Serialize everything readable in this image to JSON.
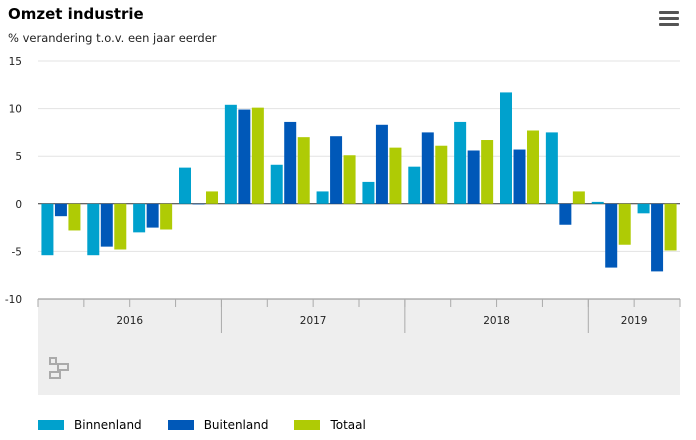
{
  "title": "Omzet industrie",
  "subtitle": "% verandering t.o.v. een jaar eerder",
  "menu_icon": "hamburger-menu-icon",
  "navigator_icon": "cbs-logo-icon",
  "legend": [
    {
      "name": "Binnenland",
      "color": "#00A1CD"
    },
    {
      "name": "Buitenland",
      "color": "#0058B8"
    },
    {
      "name": "Totaal",
      "color": "#AFCB05"
    }
  ],
  "chart_data": {
    "type": "bar",
    "categories": [
      "2016 Q1",
      "2016 Q2",
      "2016 Q3",
      "2016 Q4",
      "2017 Q1",
      "2017 Q2",
      "2017 Q3",
      "2017 Q4",
      "2018 Q1",
      "2018 Q2",
      "2018 Q3",
      "2018 Q4",
      "2019 Q1",
      "2019 Q2"
    ],
    "x_groups": [
      {
        "label": "2016",
        "quarters": 4
      },
      {
        "label": "2017",
        "quarters": 4
      },
      {
        "label": "2018",
        "quarters": 4
      },
      {
        "label": "2019",
        "quarters": 2
      }
    ],
    "series": [
      {
        "name": "Binnenland",
        "color": "#00A1CD",
        "values": [
          -5.4,
          -5.4,
          -3.0,
          3.8,
          10.4,
          4.1,
          1.3,
          2.3,
          3.9,
          8.6,
          11.7,
          7.5,
          0.2,
          -1.0
        ]
      },
      {
        "name": "Buitenland",
        "color": "#0058B8",
        "values": [
          -1.3,
          -4.5,
          -2.5,
          0.0,
          9.9,
          8.6,
          7.1,
          8.3,
          7.5,
          5.6,
          5.7,
          -2.2,
          -6.7,
          -7.1
        ]
      },
      {
        "name": "Totaal",
        "color": "#AFCB05",
        "values": [
          -2.8,
          -4.8,
          -2.7,
          1.3,
          10.1,
          7.0,
          5.1,
          5.9,
          6.1,
          6.7,
          7.7,
          1.3,
          -4.3,
          -4.9
        ]
      }
    ],
    "yticks": [
      15,
      10,
      5,
      0,
      -5,
      -10
    ],
    "ylim": [
      -10,
      15
    ],
    "grid": true,
    "legend_position": "bottom-left"
  }
}
